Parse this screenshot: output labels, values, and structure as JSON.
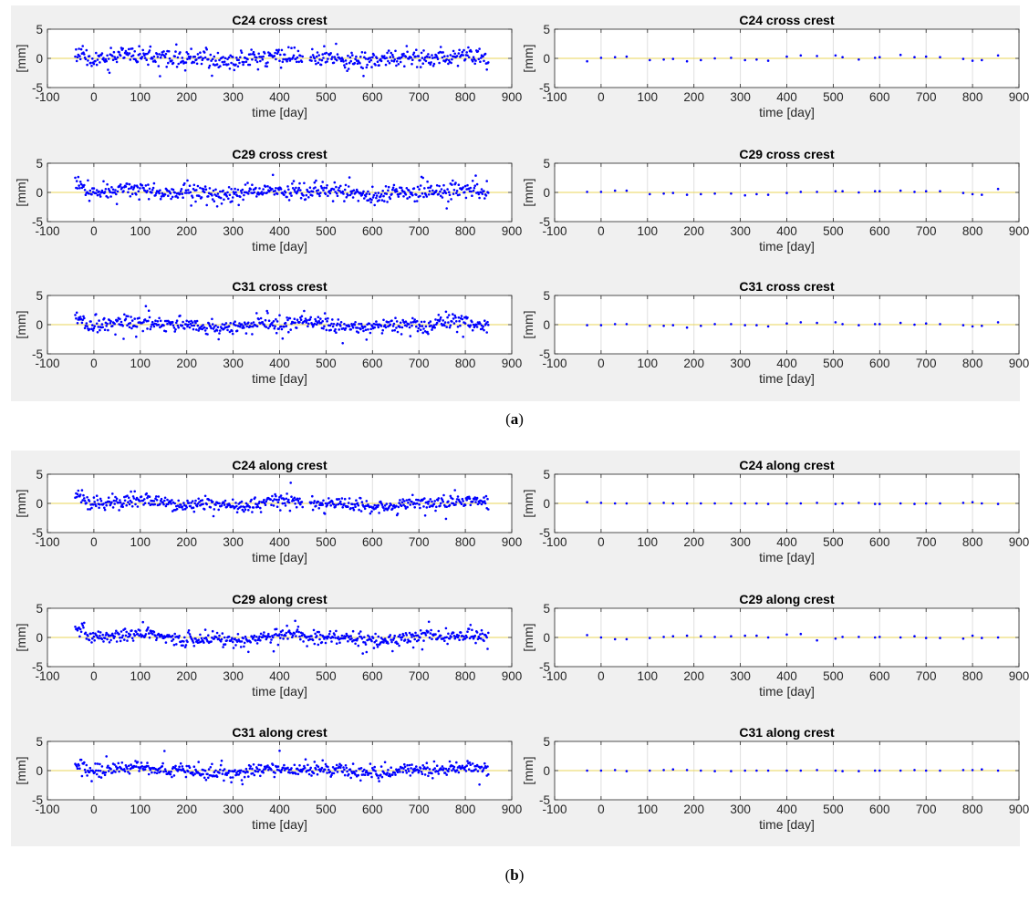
{
  "captions": {
    "a": "a",
    "b": "b"
  },
  "colors": {
    "points": "#0000ff",
    "axes": "#262626",
    "grid": "#dfdfdf",
    "zero_line": "#e8d65a",
    "figure_bg": "#f0f0f0"
  },
  "chart_data": [
    {
      "type": "scatter",
      "group": "a",
      "title": "C24 cross crest",
      "xlabel": "time [day]",
      "ylabel": "[mm]",
      "xlim": [
        -100,
        900
      ],
      "ylim": [
        -5,
        5
      ],
      "xticks": [
        -100,
        0,
        100,
        200,
        300,
        400,
        500,
        600,
        700,
        800,
        900
      ],
      "yticks": [
        -5,
        0,
        5
      ],
      "grid": true,
      "mode": "dense",
      "x_range": [
        -40,
        850
      ],
      "gap": [
        450,
        465
      ],
      "noise": 0.7,
      "seed": 11
    },
    {
      "type": "scatter",
      "group": "a",
      "title": "C24 cross crest",
      "xlabel": "time [day]",
      "ylabel": "[mm]",
      "xlim": [
        -100,
        900
      ],
      "ylim": [
        -5,
        5
      ],
      "xticks": [
        -100,
        0,
        100,
        200,
        300,
        400,
        500,
        600,
        700,
        800,
        900
      ],
      "yticks": [
        -5,
        0,
        5
      ],
      "grid": true,
      "mode": "sparse",
      "x": [
        -30,
        0,
        30,
        55,
        105,
        135,
        155,
        185,
        215,
        245,
        280,
        310,
        335,
        360,
        400,
        430,
        465,
        505,
        520,
        555,
        590,
        600,
        645,
        675,
        700,
        730,
        780,
        800,
        820,
        855
      ],
      "y": [
        -0.5,
        0.1,
        0.2,
        0.3,
        -0.3,
        -0.2,
        -0.1,
        -0.5,
        -0.3,
        0.0,
        0.1,
        -0.3,
        -0.2,
        -0.4,
        0.3,
        0.5,
        0.4,
        0.5,
        0.2,
        -0.2,
        0.1,
        0.2,
        0.6,
        0.2,
        0.3,
        0.2,
        -0.1,
        -0.4,
        -0.3,
        0.5
      ]
    },
    {
      "type": "scatter",
      "group": "a",
      "title": "C29 cross crest",
      "xlabel": "time [day]",
      "ylabel": "[mm]",
      "xlim": [
        -100,
        900
      ],
      "ylim": [
        -5,
        5
      ],
      "xticks": [
        -100,
        0,
        100,
        200,
        300,
        400,
        500,
        600,
        700,
        800,
        900
      ],
      "yticks": [
        -5,
        0,
        5
      ],
      "grid": true,
      "mode": "dense",
      "x_range": [
        -40,
        850
      ],
      "noise": 0.65,
      "seed": 23
    },
    {
      "type": "scatter",
      "group": "a",
      "title": "C29 cross crest",
      "xlabel": "time [day]",
      "ylabel": "[mm]",
      "xlim": [
        -100,
        900
      ],
      "ylim": [
        -5,
        5
      ],
      "xticks": [
        -100,
        0,
        100,
        200,
        300,
        400,
        500,
        600,
        700,
        800,
        900
      ],
      "yticks": [
        -5,
        0,
        5
      ],
      "grid": true,
      "mode": "sparse",
      "x": [
        -30,
        0,
        30,
        55,
        105,
        135,
        155,
        185,
        215,
        245,
        280,
        310,
        335,
        360,
        400,
        430,
        465,
        505,
        520,
        555,
        590,
        600,
        645,
        675,
        700,
        730,
        780,
        800,
        820,
        855
      ],
      "y": [
        0.1,
        0.1,
        0.3,
        0.3,
        -0.3,
        -0.2,
        -0.1,
        -0.4,
        -0.3,
        -0.2,
        -0.2,
        -0.5,
        -0.3,
        -0.4,
        -0.1,
        0.1,
        0.1,
        0.2,
        0.2,
        0.0,
        0.2,
        0.2,
        0.3,
        0.1,
        0.2,
        0.2,
        -0.1,
        -0.3,
        -0.4,
        0.6
      ]
    },
    {
      "type": "scatter",
      "group": "a",
      "title": "C31 cross crest",
      "xlabel": "time [day]",
      "ylabel": "[mm]",
      "xlim": [
        -100,
        900
      ],
      "ylim": [
        -5,
        5
      ],
      "xticks": [
        -100,
        0,
        100,
        200,
        300,
        400,
        500,
        600,
        700,
        800,
        900
      ],
      "yticks": [
        -5,
        0,
        5
      ],
      "grid": true,
      "mode": "dense",
      "x_range": [
        -40,
        850
      ],
      "noise": 0.65,
      "seed": 37
    },
    {
      "type": "scatter",
      "group": "a",
      "title": "C31 cross crest",
      "xlabel": "time [day]",
      "ylabel": "[mm]",
      "xlim": [
        -100,
        900
      ],
      "ylim": [
        -5,
        5
      ],
      "xticks": [
        -100,
        0,
        100,
        200,
        300,
        400,
        500,
        600,
        700,
        800,
        900
      ],
      "yticks": [
        -5,
        0,
        5
      ],
      "grid": true,
      "mode": "sparse",
      "x": [
        -30,
        0,
        30,
        55,
        105,
        135,
        155,
        185,
        215,
        245,
        280,
        310,
        335,
        360,
        400,
        430,
        465,
        505,
        520,
        555,
        590,
        600,
        645,
        675,
        700,
        730,
        780,
        800,
        820,
        855
      ],
      "y": [
        -0.1,
        -0.1,
        0.1,
        0.1,
        -0.2,
        -0.2,
        -0.1,
        -0.5,
        -0.2,
        0.1,
        0.1,
        -0.1,
        -0.1,
        -0.3,
        0.2,
        0.4,
        0.3,
        0.4,
        0.1,
        -0.1,
        0.1,
        0.1,
        0.3,
        0.0,
        0.2,
        0.1,
        -0.1,
        -0.3,
        -0.2,
        0.4
      ]
    },
    {
      "type": "scatter",
      "group": "b",
      "title": "C24 along crest",
      "xlabel": "time [day]",
      "ylabel": "[mm]",
      "xlim": [
        -100,
        900
      ],
      "ylim": [
        -5,
        5
      ],
      "xticks": [
        -100,
        0,
        100,
        200,
        300,
        400,
        500,
        600,
        700,
        800,
        900
      ],
      "yticks": [
        -5,
        0,
        5
      ],
      "grid": true,
      "mode": "dense",
      "x_range": [
        -40,
        850
      ],
      "gap": [
        450,
        465
      ],
      "noise": 0.6,
      "seed": 41
    },
    {
      "type": "scatter",
      "group": "b",
      "title": "C24 along crest",
      "xlabel": "time [day]",
      "ylabel": "[mm]",
      "xlim": [
        -100,
        900
      ],
      "ylim": [
        -5,
        5
      ],
      "xticks": [
        -100,
        0,
        100,
        200,
        300,
        400,
        500,
        600,
        700,
        800,
        900
      ],
      "yticks": [
        -5,
        0,
        5
      ],
      "grid": true,
      "mode": "sparse",
      "x": [
        -30,
        0,
        30,
        55,
        105,
        135,
        155,
        185,
        215,
        245,
        280,
        310,
        335,
        360,
        400,
        430,
        465,
        505,
        520,
        555,
        590,
        600,
        645,
        675,
        700,
        730,
        780,
        800,
        820,
        855
      ],
      "y": [
        0.2,
        0.1,
        0.0,
        0.0,
        0.0,
        0.1,
        0.0,
        0.0,
        0.0,
        0.0,
        0.0,
        0.0,
        0.0,
        -0.1,
        0.0,
        0.0,
        0.1,
        -0.1,
        0.0,
        0.1,
        -0.1,
        -0.1,
        0.0,
        -0.1,
        0.0,
        0.0,
        0.1,
        0.2,
        0.0,
        -0.1
      ]
    },
    {
      "type": "scatter",
      "group": "b",
      "title": "C29 along crest",
      "xlabel": "time [day]",
      "ylabel": "[mm]",
      "xlim": [
        -100,
        900
      ],
      "ylim": [
        -5,
        5
      ],
      "xticks": [
        -100,
        0,
        100,
        200,
        300,
        400,
        500,
        600,
        700,
        800,
        900
      ],
      "yticks": [
        -5,
        0,
        5
      ],
      "grid": true,
      "mode": "dense",
      "x_range": [
        -40,
        850
      ],
      "noise": 0.55,
      "seed": 53
    },
    {
      "type": "scatter",
      "group": "b",
      "title": "C29 along crest",
      "xlabel": "time [day]",
      "ylabel": "[mm]",
      "xlim": [
        -100,
        900
      ],
      "ylim": [
        -5,
        5
      ],
      "xticks": [
        -100,
        0,
        100,
        200,
        300,
        400,
        500,
        600,
        700,
        800,
        900
      ],
      "yticks": [
        -5,
        0,
        5
      ],
      "grid": true,
      "mode": "sparse",
      "x": [
        -30,
        0,
        30,
        55,
        105,
        135,
        155,
        185,
        215,
        245,
        280,
        310,
        335,
        360,
        400,
        430,
        465,
        505,
        520,
        555,
        590,
        600,
        645,
        675,
        700,
        730,
        780,
        800,
        820,
        855
      ],
      "y": [
        0.4,
        0.0,
        -0.3,
        -0.3,
        -0.1,
        0.1,
        0.2,
        0.3,
        0.2,
        0.1,
        0.2,
        0.3,
        0.3,
        0.0,
        0.5,
        0.6,
        -0.5,
        -0.2,
        0.1,
        0.1,
        0.0,
        0.1,
        0.0,
        0.2,
        -0.1,
        -0.1,
        -0.2,
        0.3,
        -0.1,
        0.0
      ]
    },
    {
      "type": "scatter",
      "group": "b",
      "title": "C31 along crest",
      "xlabel": "time [day]",
      "ylabel": "[mm]",
      "xlim": [
        -100,
        900
      ],
      "ylim": [
        -5,
        5
      ],
      "xticks": [
        -100,
        0,
        100,
        200,
        300,
        400,
        500,
        600,
        700,
        800,
        900
      ],
      "yticks": [
        -5,
        0,
        5
      ],
      "grid": true,
      "mode": "dense",
      "x_range": [
        -40,
        850
      ],
      "noise": 0.55,
      "seed": 67
    },
    {
      "type": "scatter",
      "group": "b",
      "title": "C31 along crest",
      "xlabel": "time [day]",
      "ylabel": "[mm]",
      "xlim": [
        -100,
        900
      ],
      "ylim": [
        -5,
        5
      ],
      "xticks": [
        -100,
        0,
        100,
        200,
        300,
        400,
        500,
        600,
        700,
        800,
        900
      ],
      "yticks": [
        -5,
        0,
        5
      ],
      "grid": true,
      "mode": "sparse",
      "x": [
        -30,
        0,
        30,
        55,
        105,
        135,
        155,
        185,
        215,
        245,
        280,
        310,
        335,
        360,
        400,
        430,
        465,
        505,
        520,
        555,
        590,
        600,
        645,
        675,
        700,
        730,
        780,
        800,
        820,
        855
      ],
      "y": [
        0.0,
        0.0,
        0.1,
        -0.1,
        0.0,
        0.1,
        0.2,
        0.1,
        0.0,
        -0.1,
        -0.1,
        0.0,
        0.0,
        0.0,
        0.0,
        0.0,
        0.1,
        0.0,
        -0.1,
        -0.1,
        0.0,
        0.0,
        0.0,
        0.1,
        0.0,
        0.0,
        0.1,
        0.1,
        0.2,
        0.0
      ]
    }
  ]
}
